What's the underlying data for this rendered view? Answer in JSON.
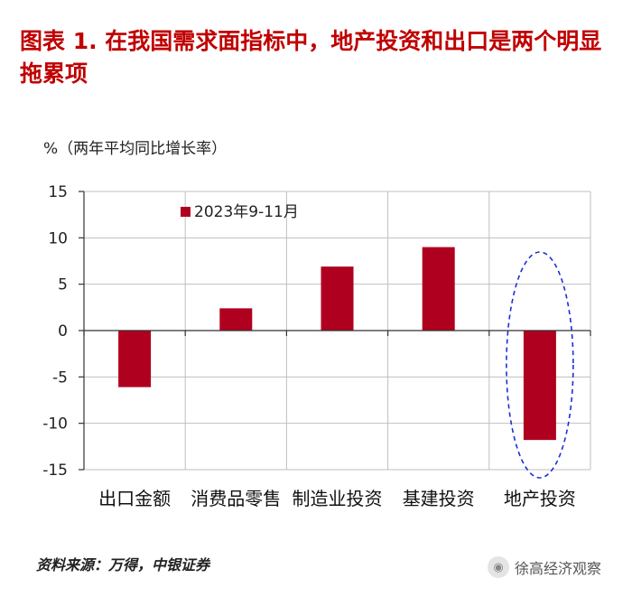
{
  "title": "图表 1. 在我国需求面指标中，地产投资和出口是两个明显拖累项",
  "source": "资料来源：万得，中银证券",
  "watermark": {
    "text": "徐高经济观察",
    "icon": "wechat-icon"
  },
  "colors": {
    "title": "#c00000",
    "bar": "#b0001f",
    "highlight": "#1a2fd6",
    "grid": "#bfbfbf"
  },
  "chart_data": {
    "type": "bar",
    "categories": [
      "出口金额",
      "消费品零售",
      "制造业投资",
      "基建投资",
      "地产投资"
    ],
    "series": [
      {
        "name": "2023年9-11月",
        "values": [
          -6.1,
          2.4,
          6.9,
          9.0,
          -11.8
        ]
      }
    ],
    "ylabel": "%（两年平均同比增长率）",
    "ylim": [
      -15,
      15
    ],
    "yticks": [
      15,
      10,
      5,
      0,
      -5,
      -10,
      -15
    ],
    "grid": true,
    "legend": "top-left",
    "highlight_category": "地产投资"
  }
}
